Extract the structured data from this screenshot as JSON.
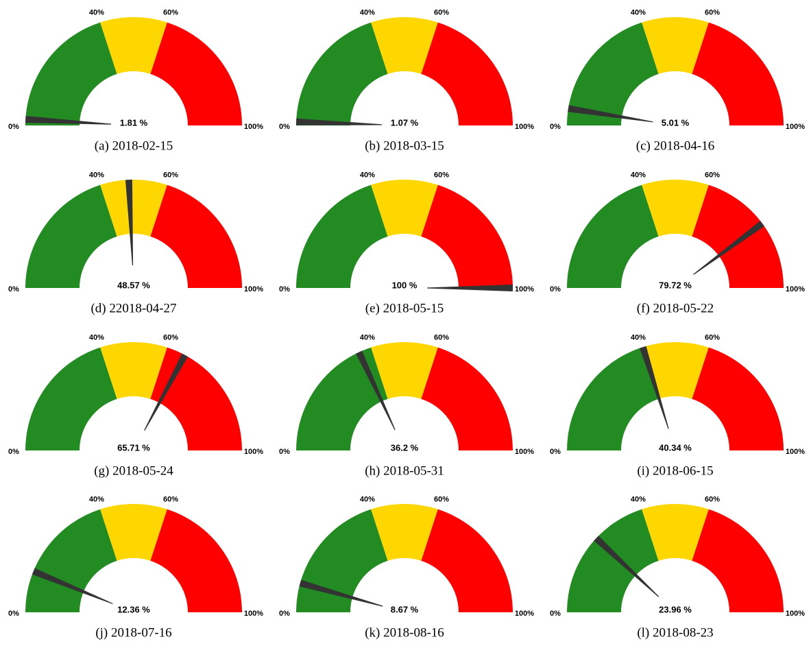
{
  "chart_data": [
    {
      "type": "gauge",
      "title": "(a) 2018-02-15",
      "ylim": [
        0,
        100
      ],
      "yticks": [
        {
          "value": 0,
          "label": "0%"
        },
        {
          "value": 40,
          "label": "40%"
        },
        {
          "value": 60,
          "label": "60%"
        },
        {
          "value": 100,
          "label": "100%"
        }
      ],
      "bands": [
        {
          "from": 0,
          "to": 40,
          "color": "#228b22"
        },
        {
          "from": 40,
          "to": 60,
          "color": "#ffd700"
        },
        {
          "from": 60,
          "to": 100,
          "color": "#ff0000"
        }
      ],
      "needle_color": "#333333",
      "values": [
        1.81
      ],
      "value_labels": [
        "1.81 %"
      ]
    },
    {
      "type": "gauge",
      "title": "(b) 2018-03-15",
      "ylim": [
        0,
        100
      ],
      "yticks": [
        {
          "value": 0,
          "label": "0%"
        },
        {
          "value": 40,
          "label": "40%"
        },
        {
          "value": 60,
          "label": "60%"
        },
        {
          "value": 100,
          "label": "100%"
        }
      ],
      "bands": [
        {
          "from": 0,
          "to": 40,
          "color": "#228b22"
        },
        {
          "from": 40,
          "to": 60,
          "color": "#ffd700"
        },
        {
          "from": 60,
          "to": 100,
          "color": "#ff0000"
        }
      ],
      "needle_color": "#333333",
      "values": [
        1.07
      ],
      "value_labels": [
        "1.07 %"
      ]
    },
    {
      "type": "gauge",
      "title": "(c) 2018-04-16",
      "ylim": [
        0,
        100
      ],
      "yticks": [
        {
          "value": 0,
          "label": "0%"
        },
        {
          "value": 40,
          "label": "40%"
        },
        {
          "value": 60,
          "label": "60%"
        },
        {
          "value": 100,
          "label": "100%"
        }
      ],
      "bands": [
        {
          "from": 0,
          "to": 40,
          "color": "#228b22"
        },
        {
          "from": 40,
          "to": 60,
          "color": "#ffd700"
        },
        {
          "from": 60,
          "to": 100,
          "color": "#ff0000"
        }
      ],
      "needle_color": "#333333",
      "values": [
        5.01
      ],
      "value_labels": [
        "5.01 %"
      ]
    },
    {
      "type": "gauge",
      "title": "(d) 22018-04-27",
      "ylim": [
        0,
        100
      ],
      "yticks": [
        {
          "value": 0,
          "label": "0%"
        },
        {
          "value": 40,
          "label": "40%"
        },
        {
          "value": 60,
          "label": "60%"
        },
        {
          "value": 100,
          "label": "100%"
        }
      ],
      "bands": [
        {
          "from": 0,
          "to": 40,
          "color": "#228b22"
        },
        {
          "from": 40,
          "to": 60,
          "color": "#ffd700"
        },
        {
          "from": 60,
          "to": 100,
          "color": "#ff0000"
        }
      ],
      "needle_color": "#333333",
      "values": [
        48.57
      ],
      "value_labels": [
        "48.57 %"
      ]
    },
    {
      "type": "gauge",
      "title": "(e) 2018-05-15",
      "ylim": [
        0,
        100
      ],
      "yticks": [
        {
          "value": 0,
          "label": "0%"
        },
        {
          "value": 40,
          "label": "40%"
        },
        {
          "value": 60,
          "label": "60%"
        },
        {
          "value": 100,
          "label": "100%"
        }
      ],
      "bands": [
        {
          "from": 0,
          "to": 40,
          "color": "#228b22"
        },
        {
          "from": 40,
          "to": 60,
          "color": "#ffd700"
        },
        {
          "from": 60,
          "to": 100,
          "color": "#ff0000"
        }
      ],
      "needle_color": "#333333",
      "values": [
        100
      ],
      "value_labels": [
        "100 %"
      ]
    },
    {
      "type": "gauge",
      "title": "(f) 2018-05-22",
      "ylim": [
        0,
        100
      ],
      "yticks": [
        {
          "value": 0,
          "label": "0%"
        },
        {
          "value": 40,
          "label": "40%"
        },
        {
          "value": 60,
          "label": "60%"
        },
        {
          "value": 100,
          "label": "100%"
        }
      ],
      "bands": [
        {
          "from": 0,
          "to": 40,
          "color": "#228b22"
        },
        {
          "from": 40,
          "to": 60,
          "color": "#ffd700"
        },
        {
          "from": 60,
          "to": 100,
          "color": "#ff0000"
        }
      ],
      "needle_color": "#333333",
      "values": [
        79.72
      ],
      "value_labels": [
        "79.72 %"
      ]
    },
    {
      "type": "gauge",
      "title": "(g) 2018-05-24",
      "ylim": [
        0,
        100
      ],
      "yticks": [
        {
          "value": 0,
          "label": "0%"
        },
        {
          "value": 40,
          "label": "40%"
        },
        {
          "value": 60,
          "label": "60%"
        },
        {
          "value": 100,
          "label": "100%"
        }
      ],
      "bands": [
        {
          "from": 0,
          "to": 40,
          "color": "#228b22"
        },
        {
          "from": 40,
          "to": 60,
          "color": "#ffd700"
        },
        {
          "from": 60,
          "to": 100,
          "color": "#ff0000"
        }
      ],
      "needle_color": "#333333",
      "values": [
        65.71
      ],
      "value_labels": [
        "65.71 %"
      ]
    },
    {
      "type": "gauge",
      "title": "(h) 2018-05-31",
      "ylim": [
        0,
        100
      ],
      "yticks": [
        {
          "value": 0,
          "label": "0%"
        },
        {
          "value": 40,
          "label": "40%"
        },
        {
          "value": 60,
          "label": "60%"
        },
        {
          "value": 100,
          "label": "100%"
        }
      ],
      "bands": [
        {
          "from": 0,
          "to": 40,
          "color": "#228b22"
        },
        {
          "from": 40,
          "to": 60,
          "color": "#ffd700"
        },
        {
          "from": 60,
          "to": 100,
          "color": "#ff0000"
        }
      ],
      "needle_color": "#333333",
      "values": [
        36.2
      ],
      "value_labels": [
        "36.2 %"
      ]
    },
    {
      "type": "gauge",
      "title": "(i) 2018-06-15",
      "ylim": [
        0,
        100
      ],
      "yticks": [
        {
          "value": 0,
          "label": "0%"
        },
        {
          "value": 40,
          "label": "40%"
        },
        {
          "value": 60,
          "label": "60%"
        },
        {
          "value": 100,
          "label": "100%"
        }
      ],
      "bands": [
        {
          "from": 0,
          "to": 40,
          "color": "#228b22"
        },
        {
          "from": 40,
          "to": 60,
          "color": "#ffd700"
        },
        {
          "from": 60,
          "to": 100,
          "color": "#ff0000"
        }
      ],
      "needle_color": "#333333",
      "values": [
        40.34
      ],
      "value_labels": [
        "40.34 %"
      ]
    },
    {
      "type": "gauge",
      "title": "(j) 2018-07-16",
      "ylim": [
        0,
        100
      ],
      "yticks": [
        {
          "value": 0,
          "label": "0%"
        },
        {
          "value": 40,
          "label": "40%"
        },
        {
          "value": 60,
          "label": "60%"
        },
        {
          "value": 100,
          "label": "100%"
        }
      ],
      "bands": [
        {
          "from": 0,
          "to": 40,
          "color": "#228b22"
        },
        {
          "from": 40,
          "to": 60,
          "color": "#ffd700"
        },
        {
          "from": 60,
          "to": 100,
          "color": "#ff0000"
        }
      ],
      "needle_color": "#333333",
      "values": [
        12.36
      ],
      "value_labels": [
        "12.36 %"
      ]
    },
    {
      "type": "gauge",
      "title": "(k) 2018-08-16",
      "ylim": [
        0,
        100
      ],
      "yticks": [
        {
          "value": 0,
          "label": "0%"
        },
        {
          "value": 40,
          "label": "40%"
        },
        {
          "value": 60,
          "label": "60%"
        },
        {
          "value": 100,
          "label": "100%"
        }
      ],
      "bands": [
        {
          "from": 0,
          "to": 40,
          "color": "#228b22"
        },
        {
          "from": 40,
          "to": 60,
          "color": "#ffd700"
        },
        {
          "from": 60,
          "to": 100,
          "color": "#ff0000"
        }
      ],
      "needle_color": "#333333",
      "values": [
        8.67
      ],
      "value_labels": [
        "8.67 %"
      ]
    },
    {
      "type": "gauge",
      "title": "(l) 2018-08-23",
      "ylim": [
        0,
        100
      ],
      "yticks": [
        {
          "value": 0,
          "label": "0%"
        },
        {
          "value": 40,
          "label": "40%"
        },
        {
          "value": 60,
          "label": "60%"
        },
        {
          "value": 100,
          "label": "100%"
        }
      ],
      "bands": [
        {
          "from": 0,
          "to": 40,
          "color": "#228b22"
        },
        {
          "from": 40,
          "to": 60,
          "color": "#ffd700"
        },
        {
          "from": 60,
          "to": 100,
          "color": "#ff0000"
        }
      ],
      "needle_color": "#333333",
      "values": [
        23.96
      ],
      "value_labels": [
        "23.96 %"
      ]
    }
  ]
}
